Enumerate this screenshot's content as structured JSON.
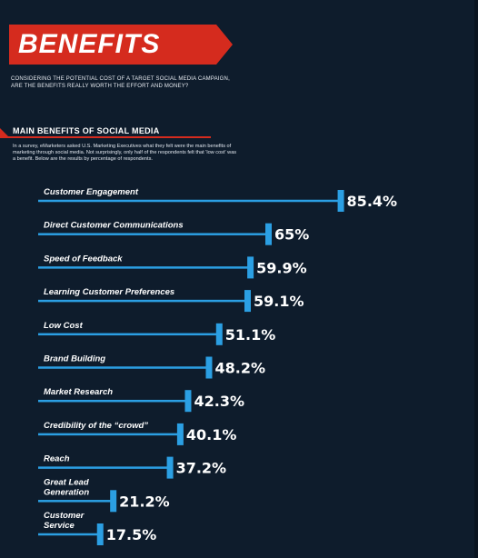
{
  "header": {
    "title": "BENEFITS",
    "intro": "CONSIDERING THE POTENTIAL COST OF A TARGET SOCIAL MEDIA CAMPAIGN, ARE THE BENEFITS REALLY WORTH THE EFFORT AND MONEY?"
  },
  "section": {
    "title": "MAIN BENEFITS OF SOCIAL MEDIA",
    "description": "In a survey, eMarketers asked U.S. Marketing Executives what they felt were the main benefits of marketing through social media. Not surprisingly, only half of the respondents felt that 'low cost' was a benefit. Below are the results by percentage of respondents."
  },
  "colors": {
    "background": "#0e1c2c",
    "accent": "#d52b1e",
    "bar": "#2b9fe3"
  },
  "chart_data": {
    "type": "bar",
    "orientation": "horizontal",
    "title": "MAIN BENEFITS OF SOCIAL MEDIA",
    "xlim": [
      0,
      100
    ],
    "grid": false,
    "categories": [
      [
        "Customer Engagement"
      ],
      [
        "Direct Customer Communications"
      ],
      [
        "Speed of Feedback"
      ],
      [
        "Learning Customer Preferences"
      ],
      [
        "Low Cost"
      ],
      [
        "Brand Building"
      ],
      [
        "Market Research"
      ],
      [
        "Credibility of the “crowd”"
      ],
      [
        "Reach"
      ],
      [
        "Great Lead",
        "Generation"
      ],
      [
        "Customer",
        "Service"
      ]
    ],
    "values": [
      85.4,
      65,
      59.9,
      59.1,
      51.1,
      48.2,
      42.3,
      40.1,
      37.2,
      21.2,
      17.5
    ],
    "value_labels": [
      "85.4%",
      "65%",
      "59.9%",
      "59.1%",
      "51.1%",
      "48.2%",
      "42.3%",
      "40.1%",
      "37.2%",
      "21.2%",
      "17.5%"
    ]
  }
}
